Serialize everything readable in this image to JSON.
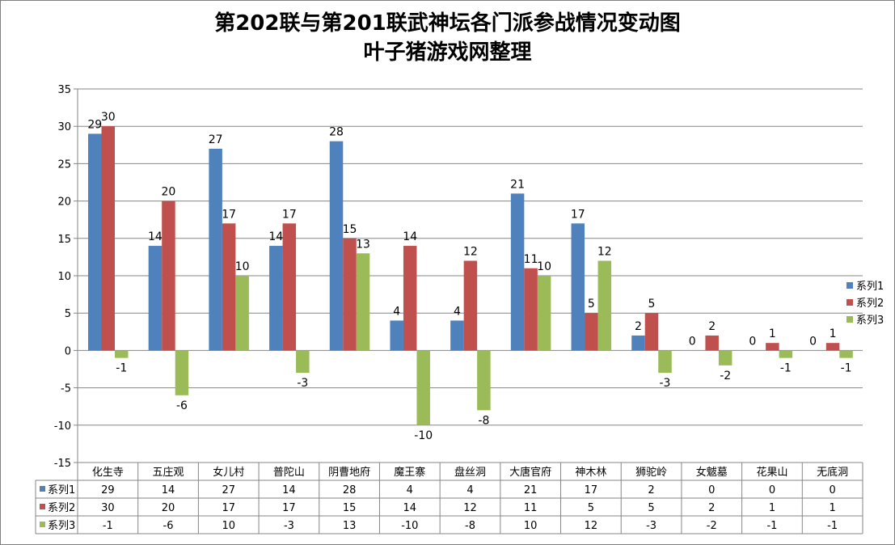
{
  "chart_data": {
    "type": "bar",
    "title": "第202联与第201联武神坛各门派参战情况变动图",
    "subtitle": "叶子猪游戏网整理",
    "categories": [
      "化生寺",
      "五庄观",
      "女儿村",
      "普陀山",
      "阴曹地府",
      "魔王寨",
      "盘丝洞",
      "大唐官府",
      "神木林",
      "狮驼岭",
      "女魃墓",
      "花果山",
      "无底洞"
    ],
    "series": [
      {
        "name": "系列1",
        "color": "#4f81bd",
        "values": [
          29,
          14,
          27,
          14,
          28,
          4,
          4,
          21,
          17,
          2,
          0,
          0,
          0
        ]
      },
      {
        "name": "系列2",
        "color": "#c0504d",
        "values": [
          30,
          20,
          17,
          17,
          15,
          14,
          12,
          11,
          5,
          5,
          2,
          1,
          1
        ]
      },
      {
        "name": "系列3",
        "color": "#9bbb59",
        "values": [
          -1,
          -6,
          10,
          -3,
          13,
          -10,
          -8,
          10,
          12,
          -3,
          -2,
          -1,
          -1
        ]
      }
    ],
    "ylim": [
      -15,
      35
    ],
    "yticks": [
      -15,
      -10,
      -5,
      0,
      5,
      10,
      15,
      20,
      25,
      30,
      35
    ],
    "grid": true,
    "legend": "right",
    "data_table": true
  }
}
